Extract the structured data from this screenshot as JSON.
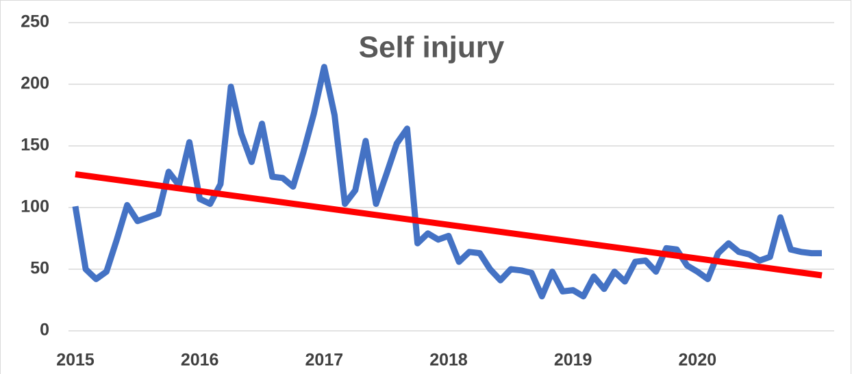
{
  "chart_data": {
    "type": "line",
    "title": "Self injury",
    "categories": [
      "2015",
      null,
      null,
      null,
      null,
      null,
      null,
      null,
      null,
      null,
      null,
      null,
      "2016",
      null,
      null,
      null,
      null,
      null,
      null,
      null,
      null,
      null,
      null,
      null,
      "2017",
      null,
      null,
      null,
      null,
      null,
      null,
      null,
      null,
      null,
      null,
      null,
      "2018",
      null,
      null,
      null,
      null,
      null,
      null,
      null,
      null,
      null,
      null,
      null,
      "2019",
      null,
      null,
      null,
      null,
      null,
      null,
      null,
      null,
      null,
      null,
      null,
      "2020",
      null,
      null,
      null,
      null,
      null,
      null,
      null,
      null,
      null,
      null,
      null,
      null
    ],
    "series": [
      {
        "color": "#4472c4",
        "values": [
          101,
          50,
          42,
          48,
          74,
          102,
          89,
          92,
          95,
          129,
          118,
          153,
          107,
          103,
          119,
          198,
          160,
          137,
          168,
          125,
          124,
          117,
          145,
          176,
          214,
          175,
          103,
          114,
          154,
          103,
          127,
          152,
          164,
          71,
          79,
          74,
          77,
          56,
          64,
          63,
          50,
          41,
          50,
          49,
          47,
          28,
          48,
          32,
          33,
          28,
          44,
          34,
          48,
          40,
          56,
          57,
          48,
          67,
          66,
          53,
          48,
          42,
          63,
          71,
          64,
          62,
          57,
          60,
          92,
          66,
          64,
          63,
          63
        ]
      }
    ],
    "trendline": {
      "color": "#ff0000",
      "start": 127,
      "end": 45
    },
    "ylim": [
      0,
      250
    ],
    "yticks": [
      0,
      50,
      100,
      150,
      200,
      250
    ],
    "grid": true
  }
}
